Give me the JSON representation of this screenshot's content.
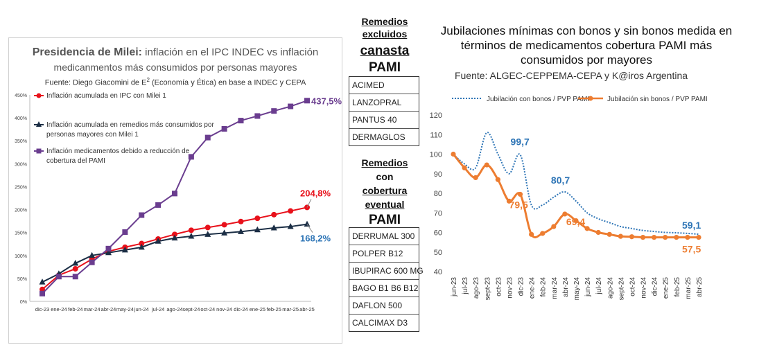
{
  "left": {
    "title_bold": "Presidencia de Milei:",
    "title_rest": " inflación en el IPC INDEC vs inflación",
    "title_line2": "medicanmentos más consumidos por personas mayores",
    "source_pre": "Fuente: Diego Giacomini de E",
    "source_sup": "2",
    "source_post": " (Economía y Ética) en base a INDEC y CEPA",
    "legend": [
      {
        "line1": "Inflación acumulada en IPC con Milei 1",
        "line2": ""
      },
      {
        "line1": "Inflación acumulada en remedios más consumidos por",
        "line2": "personas mayores con Milei 1"
      },
      {
        "line1": "Inflación medicamentos debido a reducción de",
        "line2": "cobertura del PAMI"
      }
    ],
    "end_labels": [
      "204,8%",
      "168,2%",
      "437,5%"
    ]
  },
  "middle": {
    "head1": [
      "Remedios",
      "excluidos"
    ],
    "head1_big": [
      "canasta",
      "PAMI"
    ],
    "list1": [
      "ACIMED",
      "LANZOPRAL",
      "PANTUS 40",
      "DERMAGLOS"
    ],
    "head2": [
      "Remedios",
      "con",
      "cobertura",
      "eventual"
    ],
    "head2_big": "PAMI",
    "list2": [
      "DERRUMAL 300",
      "POLPER B12",
      "IBUPIRAC 600 MG",
      "BAGO B1 B6 B12",
      "DAFLON 500",
      "CALCIMAX D3"
    ]
  },
  "right": {
    "title_lines": [
      "Jubilaciones mínimas con bonos y sin bonos medida en",
      "términos de medicamentos cobertura PAMI más",
      "consumidos por mayores"
    ],
    "source": "Fuente: ALGEC-CEPPEMA-CEPA y K@iros Argentina",
    "legend": [
      "Jubilación con bonos / PVP PAMI",
      "Jubilación sin bonos / PVP PAMI"
    ],
    "labels": {
      "con": [
        "99,7",
        "80,7",
        "59,1"
      ],
      "sin": [
        "79,5",
        "69,4",
        "57,5"
      ]
    }
  },
  "chart_data": [
    {
      "type": "line",
      "title": "Presidencia de Milei: inflación en el IPC INDEC vs inflación medicanmentos más consumidos por personas mayores",
      "categories": [
        "dic-23",
        "ene-24",
        "feb-24",
        "mar-24",
        "abr-24",
        "may-24",
        "jun-24",
        "jul-24",
        "ago-24",
        "sept-24",
        "oct-24",
        "nov-24",
        "dic-24",
        "ene-25",
        "feb-25",
        "mar-25",
        "abr-25"
      ],
      "y_ticks": [
        "0%",
        "50%",
        "100%",
        "150%",
        "200%",
        "250%",
        "300%",
        "350%",
        "400%",
        "450%"
      ],
      "ylim": [
        0,
        450
      ],
      "grid": false,
      "colors": [
        "#e8111b",
        "#1b2e45",
        "#6a3d8f"
      ],
      "series": [
        {
          "name": "Inflación acumulada en IPC con Milei 1",
          "values": [
            26,
            57,
            71,
            92,
            109,
            118,
            126,
            136,
            146,
            155,
            161,
            167,
            174,
            181,
            189,
            197,
            204.8
          ]
        },
        {
          "name": "Inflación acumulada en remedios más consumidos por personas mayores con Milei 1",
          "values": [
            42,
            60,
            83,
            100,
            106,
            112,
            118,
            131,
            138,
            142,
            146,
            149,
            152,
            156,
            160,
            163,
            168.2
          ]
        },
        {
          "name": "Inflación medicamentos debido a reducción de cobertura del PAMI",
          "values": [
            17,
            54,
            54,
            85,
            115,
            151,
            188,
            210,
            235,
            315,
            357,
            376,
            394,
            404,
            415,
            425,
            437.5
          ]
        }
      ]
    },
    {
      "type": "line",
      "title": "Jubilaciones mínimas con bonos y sin bonos medida en términos de medicamentos cobertura PAMI más consumidos por mayores",
      "categories": [
        "jun-23",
        "jul-23",
        "ago-23",
        "sept-23",
        "oct-23",
        "nov-23",
        "dic-23",
        "ene-24",
        "feb-24",
        "mar-24",
        "abr-24",
        "may-24",
        "jun-24",
        "jul-24",
        "ago-24",
        "sept-24",
        "oct-24",
        "nov-24",
        "dic-24",
        "ene-25",
        "feb-25",
        "mar-25",
        "abr-25"
      ],
      "ylim": [
        40,
        120
      ],
      "y_ticks": [
        40,
        50,
        60,
        70,
        80,
        90,
        100,
        110,
        120
      ],
      "grid": false,
      "legend_position": "top",
      "colors": [
        "#2e75b6",
        "#ed7d31"
      ],
      "series": [
        {
          "name": "Jubilación con bonos / PVP PAMI",
          "values": [
            100,
            95,
            93,
            111,
            100,
            90,
            99.7,
            74,
            74,
            78,
            80.7,
            76,
            70,
            67,
            65,
            63,
            62,
            61,
            60.5,
            60,
            59.8,
            59.5,
            59.1
          ]
        },
        {
          "name": "Jubilación sin bonos / PVP PAMI",
          "values": [
            100,
            93,
            88,
            94.5,
            87,
            76,
            79.5,
            59,
            59.5,
            63,
            69.4,
            66,
            62,
            60,
            59,
            58,
            57.8,
            57.5,
            57.5,
            57.5,
            57.5,
            57.5,
            57.5
          ]
        }
      ]
    }
  ]
}
